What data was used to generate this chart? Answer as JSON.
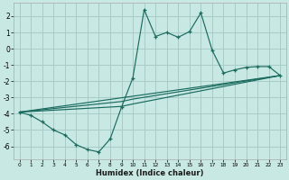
{
  "background_color": "#c8e8e4",
  "grid_color": "#a8ccc8",
  "line_color": "#1a6b5e",
  "xlabel": "Humidex (Indice chaleur)",
  "xlim": [
    -0.5,
    23.5
  ],
  "ylim": [
    -6.8,
    2.8
  ],
  "xticks": [
    0,
    1,
    2,
    3,
    4,
    5,
    6,
    7,
    8,
    9,
    10,
    11,
    12,
    13,
    14,
    15,
    16,
    17,
    18,
    19,
    20,
    21,
    22,
    23
  ],
  "yticks": [
    -6,
    -5,
    -4,
    -3,
    -2,
    -1,
    0,
    1,
    2
  ],
  "curve_main_x": [
    0,
    1,
    2,
    3,
    4,
    5,
    6,
    7,
    8,
    9,
    10,
    11,
    12,
    13,
    14,
    15,
    16,
    17,
    18,
    19,
    20,
    21,
    22,
    23
  ],
  "curve_main_y": [
    -3.9,
    -4.1,
    -4.5,
    -5.0,
    -5.3,
    -5.9,
    -6.2,
    -6.35,
    -5.55,
    -3.6,
    -1.8,
    2.4,
    0.75,
    1.0,
    0.7,
    1.05,
    2.2,
    -0.1,
    -1.5,
    -1.3,
    -1.15,
    -1.1,
    -1.1,
    -1.65
  ],
  "line1_x": [
    0,
    23
  ],
  "line1_y": [
    -3.9,
    -1.65
  ],
  "line2_x": [
    0,
    9,
    10,
    23
  ],
  "line2_y": [
    -3.9,
    -3.55,
    -3.4,
    -1.65
  ],
  "line3_x": [
    0,
    9,
    10,
    23
  ],
  "line3_y": [
    -3.9,
    -3.25,
    -3.1,
    -1.65
  ]
}
